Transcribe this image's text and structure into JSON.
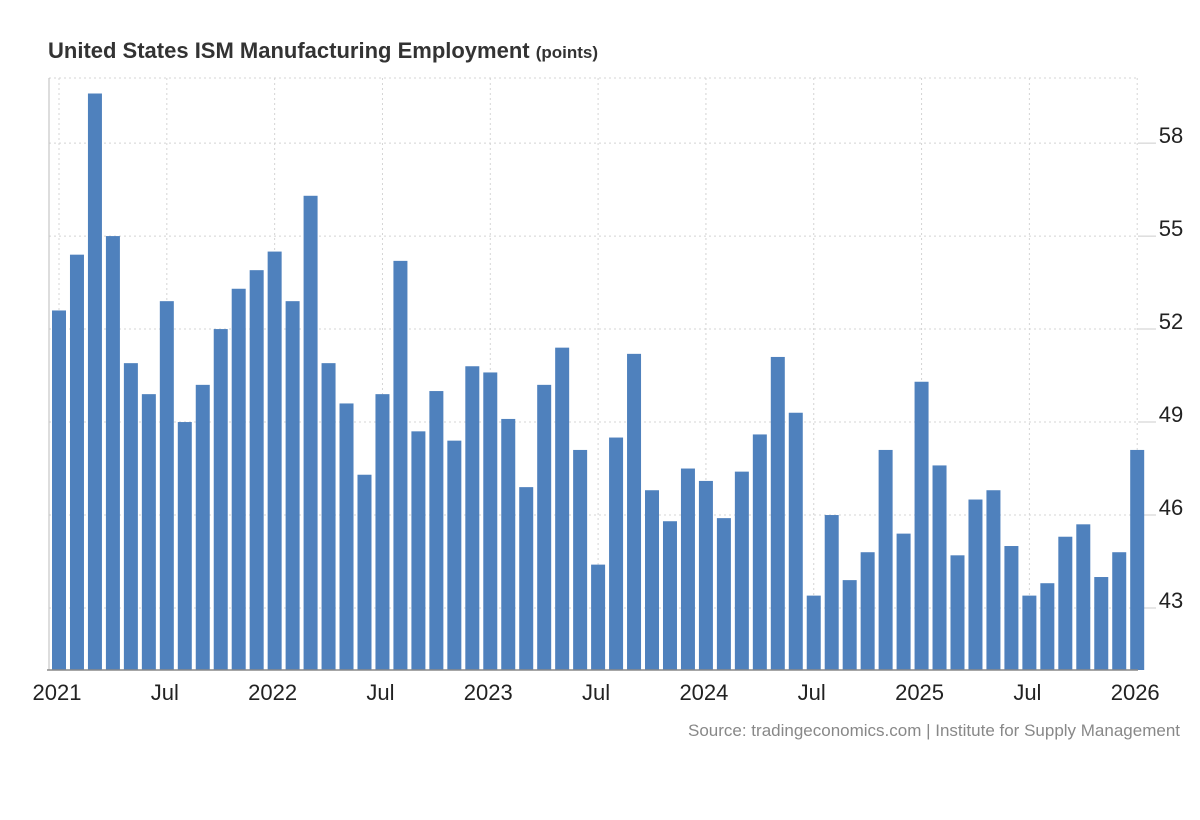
{
  "chart_data": {
    "type": "bar",
    "title": "United States ISM Manufacturing Employment",
    "unit": "(points)",
    "source": "Source: tradingeconomics.com | Institute for Supply Management",
    "color": "#4f81bd",
    "grid": true,
    "ylim": [
      41,
      60.1
    ],
    "yticks": [
      43,
      46,
      49,
      52,
      55,
      58
    ],
    "x_tick_labels": [
      {
        "index": 0,
        "label": "2021"
      },
      {
        "index": 6,
        "label": "Jul"
      },
      {
        "index": 12,
        "label": "2022"
      },
      {
        "index": 18,
        "label": "Jul"
      },
      {
        "index": 24,
        "label": "2023"
      },
      {
        "index": 30,
        "label": "Jul"
      },
      {
        "index": 36,
        "label": "2024"
      },
      {
        "index": 42,
        "label": "Jul"
      },
      {
        "index": 48,
        "label": "2025"
      },
      {
        "index": 54,
        "label": "Jul"
      },
      {
        "index": 60,
        "label": "2026"
      }
    ],
    "categories": [
      "Jan 2021",
      "Feb 2021",
      "Mar 2021",
      "Apr 2021",
      "May 2021",
      "Jun 2021",
      "Jul 2021",
      "Aug 2021",
      "Sep 2021",
      "Oct 2021",
      "Nov 2021",
      "Dec 2021",
      "Jan 2022",
      "Feb 2022",
      "Mar 2022",
      "Apr 2022",
      "May 2022",
      "Jun 2022",
      "Jul 2022",
      "Aug 2022",
      "Sep 2022",
      "Oct 2022",
      "Nov 2022",
      "Dec 2022",
      "Jan 2023",
      "Feb 2023",
      "Mar 2023",
      "Apr 2023",
      "May 2023",
      "Jun 2023",
      "Jul 2023",
      "Aug 2023",
      "Sep 2023",
      "Oct 2023",
      "Nov 2023",
      "Dec 2023",
      "Jan 2024",
      "Feb 2024",
      "Mar 2024",
      "Apr 2024",
      "May 2024",
      "Jun 2024",
      "Jul 2024",
      "Aug 2024",
      "Sep 2024",
      "Oct 2024",
      "Nov 2024",
      "Dec 2024",
      "Jan 2025",
      "Feb 2025",
      "Mar 2025",
      "Apr 2025",
      "May 2025",
      "Jun 2025",
      "Jul 2025",
      "Aug 2025",
      "Sep 2025",
      "Oct 2025",
      "Nov 2025",
      "Dec 2025",
      "Jan 2026"
    ],
    "values": [
      52.6,
      54.4,
      59.6,
      55.0,
      50.9,
      49.9,
      52.9,
      49.0,
      50.2,
      52.0,
      53.3,
      53.9,
      54.5,
      52.9,
      56.3,
      50.9,
      49.6,
      47.3,
      49.9,
      54.2,
      48.7,
      50.0,
      48.4,
      50.8,
      50.6,
      49.1,
      46.9,
      50.2,
      51.4,
      48.1,
      44.4,
      48.5,
      51.2,
      46.8,
      45.8,
      47.5,
      47.1,
      45.9,
      47.4,
      48.6,
      51.1,
      49.3,
      43.4,
      46.0,
      43.9,
      44.8,
      48.1,
      45.4,
      50.3,
      47.6,
      44.7,
      46.5,
      46.8,
      45.0,
      43.4,
      43.8,
      45.3,
      45.7,
      44.0,
      44.8,
      48.1
    ]
  }
}
